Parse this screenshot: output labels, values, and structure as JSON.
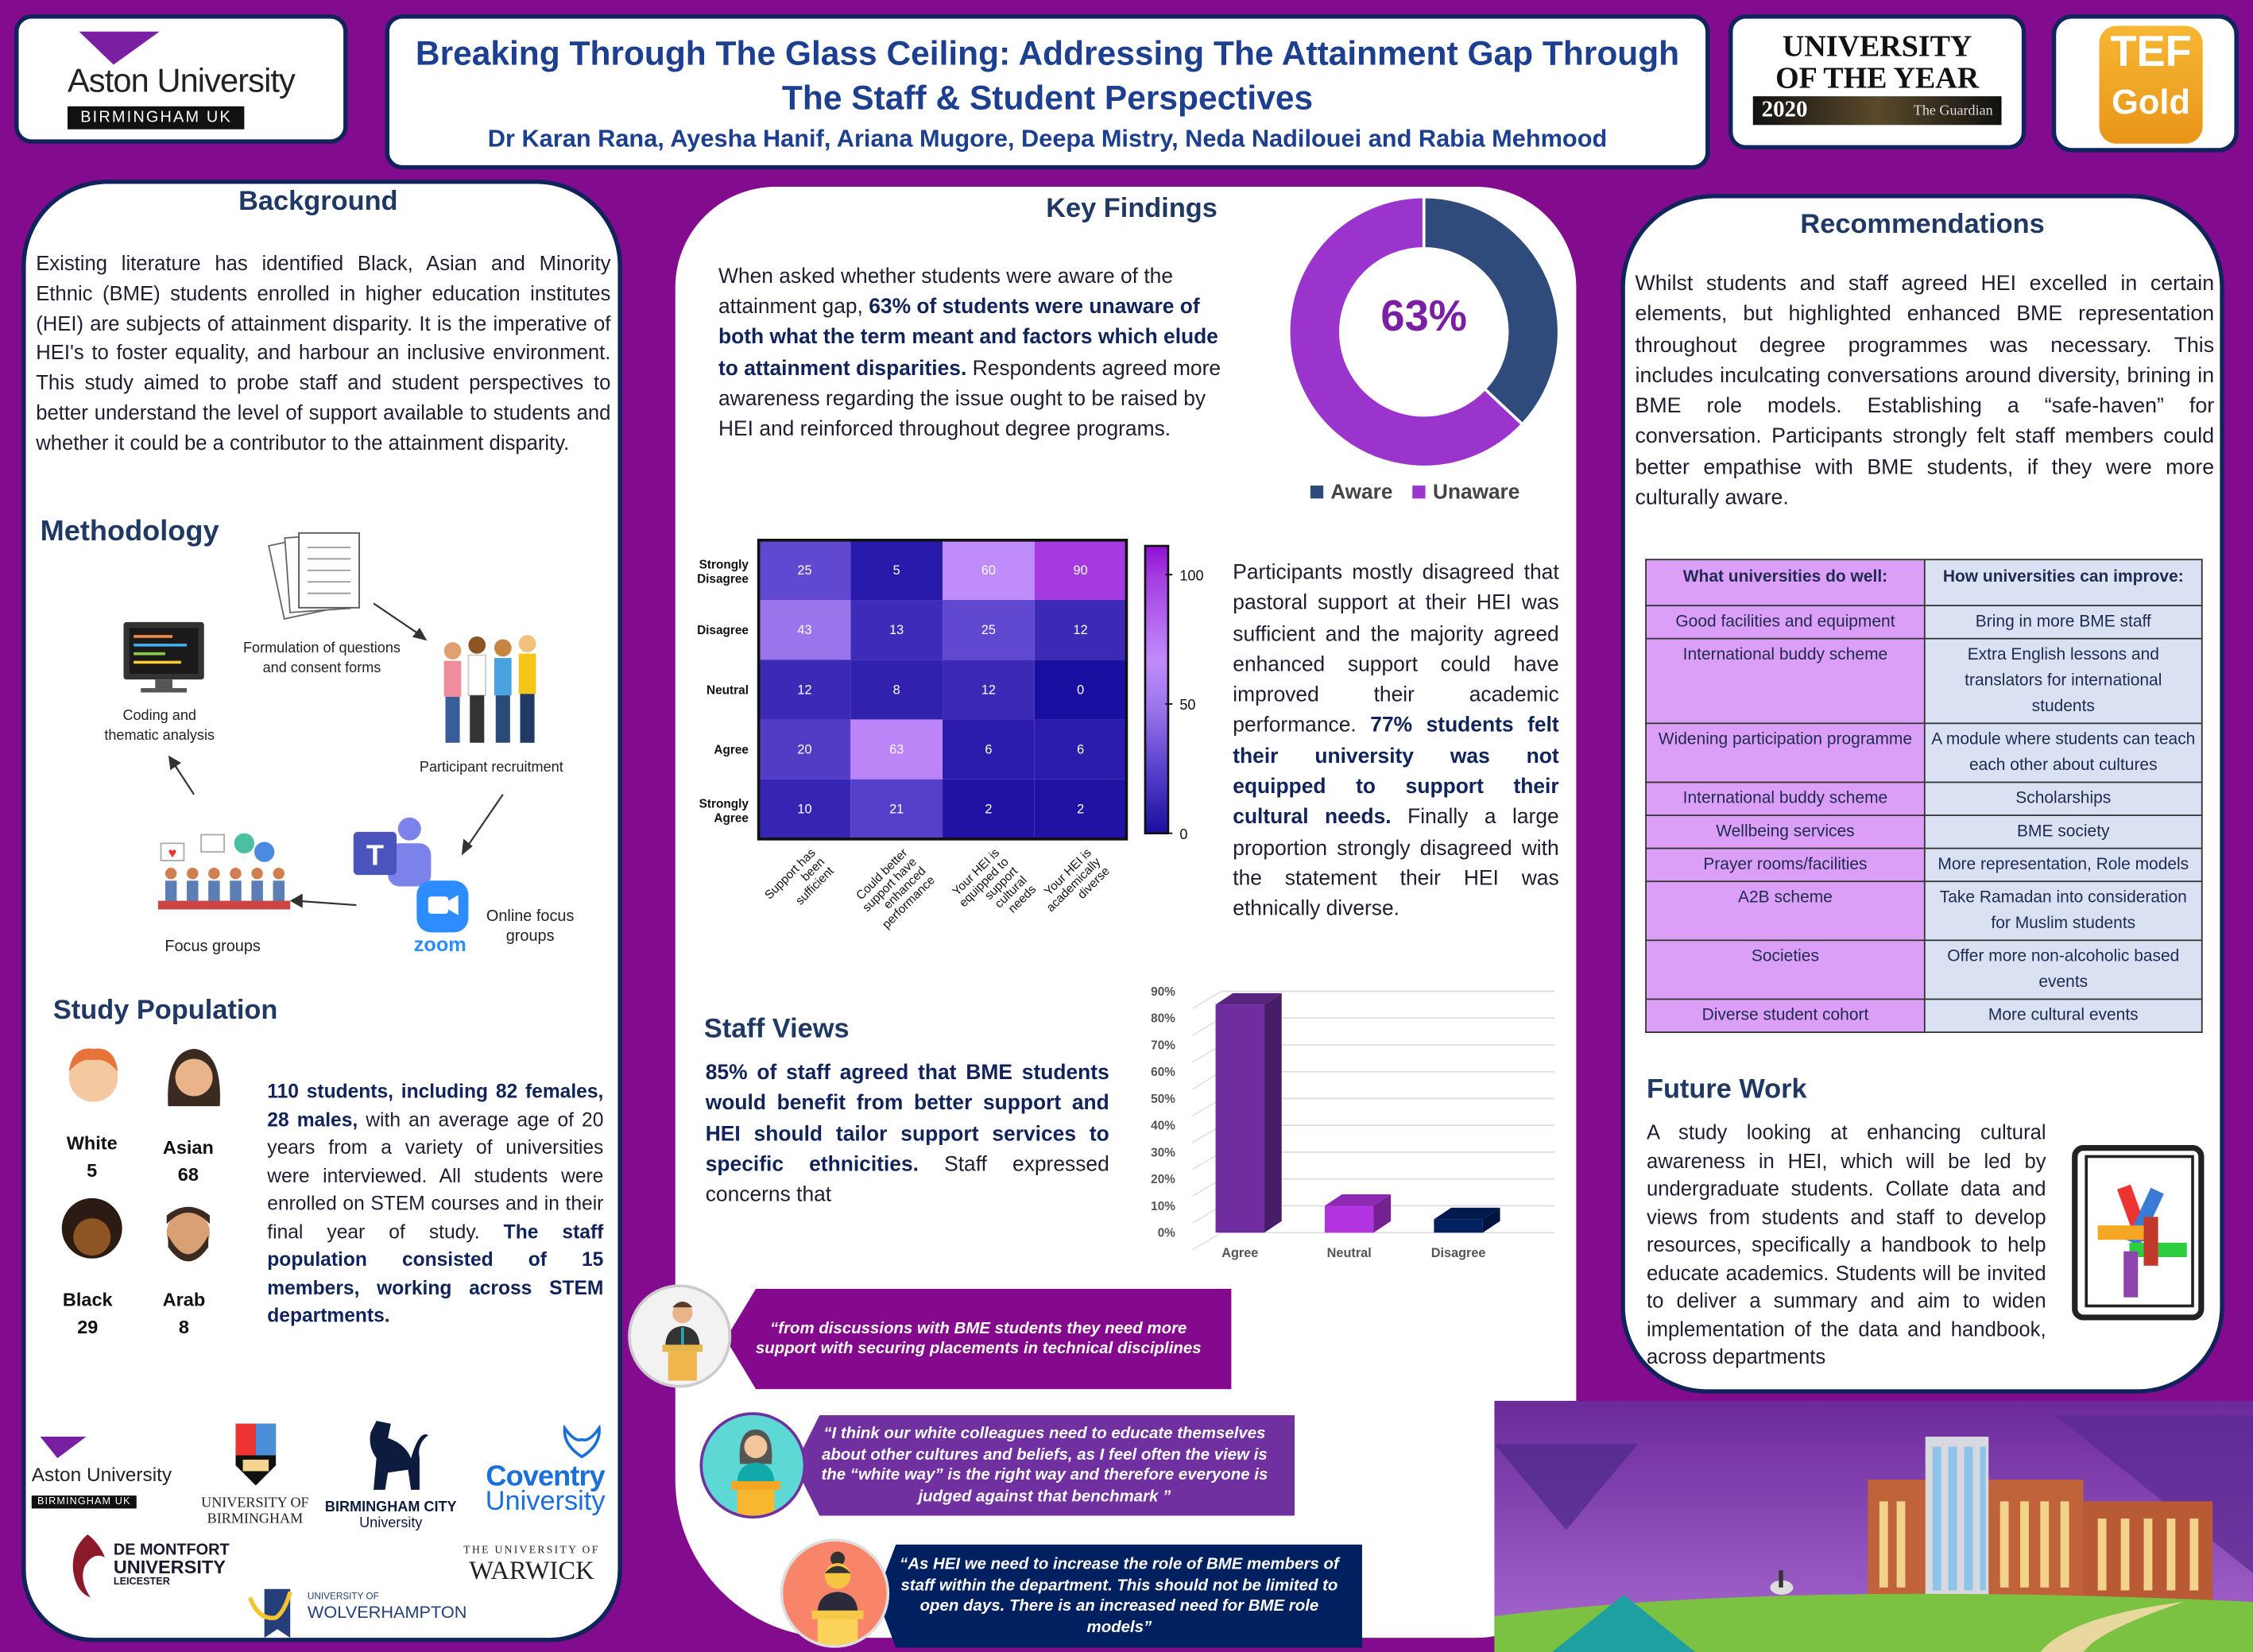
{
  "header": {
    "title": "Breaking Through The Glass Ceiling: Addressing The Attainment Gap Through The Staff & Student Perspectives",
    "authors": "Dr Karan Rana, Ayesha Hanif, Ariana Mugore, Deepa Mistry, Neda Nadilouei and Rabia Mehmood",
    "aston_logo": {
      "name": "Aston University",
      "sub": "BIRMINGHAM UK"
    },
    "uoty_badge": {
      "line1": "UNIVERSITY",
      "line2": "OF THE YEAR",
      "year": "2020",
      "publisher": "The Guardian"
    },
    "tef_badge": {
      "line1": "TEF",
      "line2": "Gold"
    }
  },
  "background": {
    "heading": "Background",
    "text": "Existing literature has identified Black, Asian and Minority Ethnic (BME) students enrolled in higher education institutes (HEI) are subjects of attainment disparity. It is the imperative of HEI's to foster equality, and harbour an inclusive environment. This study aimed to probe staff and student perspectives to better understand the level of support available to students and whether it could be a contributor to the attainment disparity."
  },
  "methodology": {
    "heading": "Methodology",
    "steps": [
      "Formulation of questions and consent forms",
      "Participant recruitment",
      "Online focus groups",
      "Focus groups",
      "Coding and thematic analysis"
    ],
    "zoom_label": "zoom"
  },
  "study_population": {
    "heading": "Study Population",
    "groups": [
      {
        "label": "White",
        "count": "5"
      },
      {
        "label": "Asian",
        "count": "68"
      },
      {
        "label": "Black",
        "count": "29"
      },
      {
        "label": "Arab",
        "count": "8"
      }
    ],
    "text": [
      "110 students, including 82 females, 28 males,",
      " with an average age of 20 years from a variety of universities were interviewed. All students were enrolled on STEM courses and in their final year of study. ",
      "The staff population consisted of 15 members, working across STEM departments."
    ]
  },
  "partner_logos": [
    "Aston University",
    "BIRMINGHAM UK",
    "UNIVERSITY OF BIRMINGHAM",
    "BIRMINGHAM CITY",
    "University",
    "Coventry",
    "University",
    "DE MONTFORT",
    "UNIVERSITY",
    "LEICESTER",
    "THE UNIVERSITY OF",
    "WARWICK",
    "UNIVERSITY OF",
    "WOLVERHAMPTON"
  ],
  "key_findings": {
    "heading": "Key Findings",
    "text": [
      "When asked whether students were aware of the attainment gap, ",
      "63% of students were unaware of both what the term meant and factors which elude to attainment disparities.",
      " Respondents agreed more awareness regarding the issue ought to be raised by HEI and reinforced throughout degree programs."
    ],
    "heatmap_text": [
      "Participants mostly disagreed that pastoral support at their HEI was sufficient and the majority agreed enhanced support could have improved their academic performance. ",
      "77% students felt their university was not equipped to support their cultural needs.",
      " Finally a large proportion strongly disagreed with the statement their HEI was ethnically diverse."
    ]
  },
  "staff_views": {
    "heading": "Staff Views",
    "text": [
      "85% of staff agreed that BME students would benefit from better support and HEI should tailor support services to specific ethnicities.",
      " Staff expressed concerns that"
    ]
  },
  "quotes": [
    "“from discussions with BME students they need more support with securing placements in technical disciplines",
    "“I think our white colleagues need to educate themselves about other cultures and beliefs, as I feel often the view is the “white way” is the right way and therefore everyone is judged against that benchmark ”",
    "“As HEI we need to increase the role of BME members of staff within the department. This should not be limited to open days. There is an increased need for BME role models”"
  ],
  "recommendations": {
    "heading": "Recommendations",
    "text": "Whilst students and staff agreed HEI excelled in certain elements, but highlighted enhanced BME representation throughout degree programmes was necessary. This includes inculcating conversations around diversity, brining in BME role models. Establishing a “safe-haven” for conversation. Participants strongly felt staff members could better empathise with BME students, if they were more culturally aware.",
    "table": {
      "headers": [
        "What universities do well:",
        "How universities can improve:"
      ],
      "rows": [
        [
          "Good facilities and equipment",
          "Bring in more BME staff"
        ],
        [
          "International buddy scheme",
          "Extra English lessons and translators for international students"
        ],
        [
          "Widening participation programme",
          "A module where students can teach each other about cultures"
        ],
        [
          "International buddy scheme",
          "Scholarships"
        ],
        [
          "Wellbeing services",
          "BME society"
        ],
        [
          "Prayer rooms/facilities",
          "More representation, Role models"
        ],
        [
          "A2B scheme",
          "Take Ramadan into consideration for Muslim students"
        ],
        [
          "Societies",
          "Offer more non-alcoholic based events"
        ],
        [
          "Diverse student cohort",
          "More cultural events"
        ]
      ]
    }
  },
  "future_work": {
    "heading": "Future Work",
    "text": "A study looking at enhancing cultural awareness in HEI, which will be led by undergraduate students. Collate data and views from students and staff to develop resources, specifically a handbook to help educate academics. Students will be invited to deliver a summary and aim to widen implementation of the data and handbook, across departments"
  },
  "colors": {
    "background": "#830b8d",
    "navy": "#10235a",
    "aware": "#2f4b7c",
    "unaware": "#9b34cc",
    "quote1": "#85098c",
    "quote2": "#7030a0",
    "quote3": "#002060"
  },
  "chart_data": [
    {
      "type": "pie",
      "variant": "donut",
      "labels": [
        "Aware",
        "Unaware"
      ],
      "values": [
        37,
        63
      ],
      "center_label": "63%",
      "legend": "bottom-right"
    },
    {
      "type": "heatmap",
      "rows": [
        "Strongly Disagree",
        "Disagree",
        "Neutral",
        "Agree",
        "Strongly Agree"
      ],
      "columns": [
        "Support has been sufficient",
        "Could better support have enhanced performance",
        "Your HEI is equipped to support cultural needs",
        "Your HEI is academically diverse"
      ],
      "values": [
        [
          25,
          5,
          60,
          90
        ],
        [
          43,
          13,
          25,
          12
        ],
        [
          12,
          8,
          12,
          0
        ],
        [
          20,
          63,
          6,
          6
        ],
        [
          10,
          21,
          2,
          2
        ]
      ],
      "colorbar": {
        "range": [
          0,
          100
        ],
        "ticks": [
          "100",
          "50",
          "0"
        ]
      }
    },
    {
      "type": "bar",
      "style": "3d-column",
      "categories": [
        "Agree",
        "Neutral",
        "Disagree"
      ],
      "values": [
        85,
        10,
        5
      ],
      "colors": [
        "#6f2da0",
        "#b233e0",
        "#002060"
      ],
      "ylim": [
        0,
        90
      ],
      "yticks": [
        "0%",
        "10%",
        "20%",
        "30%",
        "40%",
        "50%",
        "60%",
        "70%",
        "80%",
        "90%"
      ],
      "grid": true
    }
  ]
}
